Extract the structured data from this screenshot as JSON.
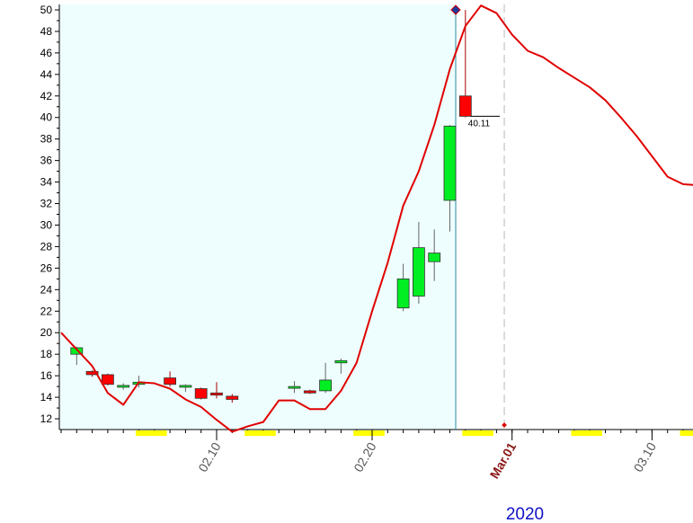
{
  "chart_data": {
    "type": "candlestick",
    "ylim": [
      11,
      50.5
    ],
    "y_ticks": [
      "12",
      "14",
      "16",
      "18",
      "20",
      "22",
      "24",
      "26",
      "28",
      "30",
      "32",
      "34",
      "36",
      "38",
      "40",
      "42",
      "44",
      "46",
      "48",
      "50"
    ],
    "x_ticks": [
      {
        "label": "02.10",
        "day": 10,
        "emphasis": false
      },
      {
        "label": "02.20",
        "day": 20,
        "emphasis": false
      },
      {
        "label": "Mar.01",
        "day": 29,
        "emphasis": true
      },
      {
        "label": "03.10",
        "day": 38,
        "emphasis": false
      }
    ],
    "year_label": "2020",
    "last_value_label": "40.11",
    "highlight_day": 28.5,
    "candles": [
      {
        "day": 1,
        "open": 18.0,
        "high": 18.7,
        "low": 17.0,
        "close": 18.6
      },
      {
        "day": 2,
        "open": 16.4,
        "high": 16.5,
        "low": 15.9,
        "close": 16.1
      },
      {
        "day": 3,
        "open": 16.1,
        "high": 16.2,
        "low": 15.1,
        "close": 15.2
      },
      {
        "day": 4,
        "open": 15.0,
        "high": 15.3,
        "low": 14.7,
        "close": 15.1
      },
      {
        "day": 5,
        "open": 15.2,
        "high": 16.0,
        "low": 14.9,
        "close": 15.4
      },
      {
        "day": 7,
        "open": 15.8,
        "high": 16.4,
        "low": 15.0,
        "close": 15.2
      },
      {
        "day": 8,
        "open": 15.0,
        "high": 15.2,
        "low": 14.5,
        "close": 15.1
      },
      {
        "day": 9,
        "open": 14.8,
        "high": 14.9,
        "low": 13.8,
        "close": 13.9
      },
      {
        "day": 10,
        "open": 14.4,
        "high": 15.4,
        "low": 13.9,
        "close": 14.2
      },
      {
        "day": 11,
        "open": 14.1,
        "high": 14.3,
        "low": 13.5,
        "close": 13.8
      },
      {
        "day": 15,
        "open": 14.9,
        "high": 15.5,
        "low": 14.4,
        "close": 15.0
      },
      {
        "day": 16,
        "open": 14.6,
        "high": 14.7,
        "low": 14.3,
        "close": 14.4
      },
      {
        "day": 17,
        "open": 14.6,
        "high": 17.2,
        "low": 14.4,
        "close": 15.6
      },
      {
        "day": 18,
        "open": 17.2,
        "high": 17.6,
        "low": 16.2,
        "close": 17.4
      },
      {
        "day": 22,
        "open": 22.3,
        "high": 26.4,
        "low": 22.0,
        "close": 25.0
      },
      {
        "day": 23,
        "open": 23.4,
        "high": 30.3,
        "low": 22.7,
        "close": 27.9
      },
      {
        "day": 24,
        "open": 26.6,
        "high": 29.6,
        "low": 24.8,
        "close": 27.4
      },
      {
        "day": 25,
        "open": 32.3,
        "high": 39.3,
        "low": 29.4,
        "close": 39.2
      },
      {
        "day": 26,
        "open": 42.0,
        "high": 50.0,
        "low": 40.0,
        "close": 40.11
      }
    ],
    "line": {
      "color": "#e00000",
      "points": [
        [
          0,
          20.0
        ],
        [
          2,
          16.9
        ],
        [
          3,
          14.4
        ],
        [
          4,
          13.3
        ],
        [
          5,
          15.4
        ],
        [
          6,
          15.3
        ],
        [
          7,
          14.8
        ],
        [
          8,
          13.8
        ],
        [
          9,
          13.1
        ],
        [
          10,
          11.9
        ],
        [
          11,
          10.8
        ],
        [
          12,
          11.3
        ],
        [
          13,
          11.7
        ],
        [
          14,
          13.7
        ],
        [
          15,
          13.7
        ],
        [
          16,
          12.9
        ],
        [
          17,
          12.9
        ],
        [
          18,
          14.6
        ],
        [
          19,
          17.2
        ],
        [
          20,
          22.0
        ],
        [
          21,
          26.5
        ],
        [
          22,
          31.8
        ],
        [
          23,
          35.0
        ],
        [
          24,
          39.3
        ],
        [
          25,
          44.5
        ],
        [
          26,
          48.5
        ],
        [
          27,
          50.4
        ],
        [
          28,
          49.7
        ],
        [
          29,
          47.7
        ],
        [
          30,
          46.2
        ],
        [
          31,
          45.6
        ],
        [
          32,
          44.6
        ],
        [
          33,
          43.7
        ],
        [
          34,
          42.8
        ],
        [
          35,
          41.6
        ],
        [
          36,
          40.0
        ],
        [
          37,
          38.3
        ],
        [
          38,
          36.4
        ],
        [
          39,
          34.5
        ],
        [
          40,
          33.8
        ],
        [
          41,
          33.7
        ]
      ]
    }
  }
}
